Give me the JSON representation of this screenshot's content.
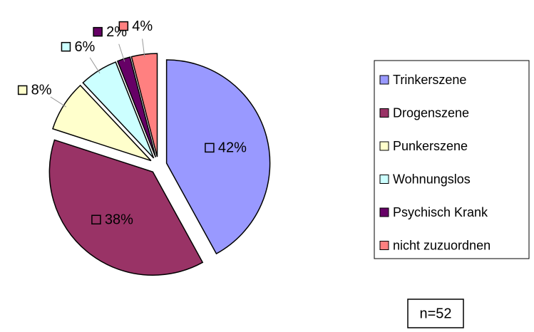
{
  "chart_data": {
    "type": "pie",
    "categories": [
      "Trinkerszene",
      "Drogenszene",
      "Punkerszene",
      "Wohnungslos",
      "Psychisch Krank",
      "nicht zuzuordnen"
    ],
    "values": [
      42,
      38,
      8,
      6,
      2,
      4
    ],
    "value_labels": [
      "42%",
      "38%",
      "8%",
      "6%",
      "2%",
      "4%"
    ],
    "colors": [
      "#9999ff",
      "#993366",
      "#ffffcc",
      "#ccffff",
      "#660066",
      "#ff8080"
    ],
    "legend": "right",
    "annotation": "n=52"
  }
}
